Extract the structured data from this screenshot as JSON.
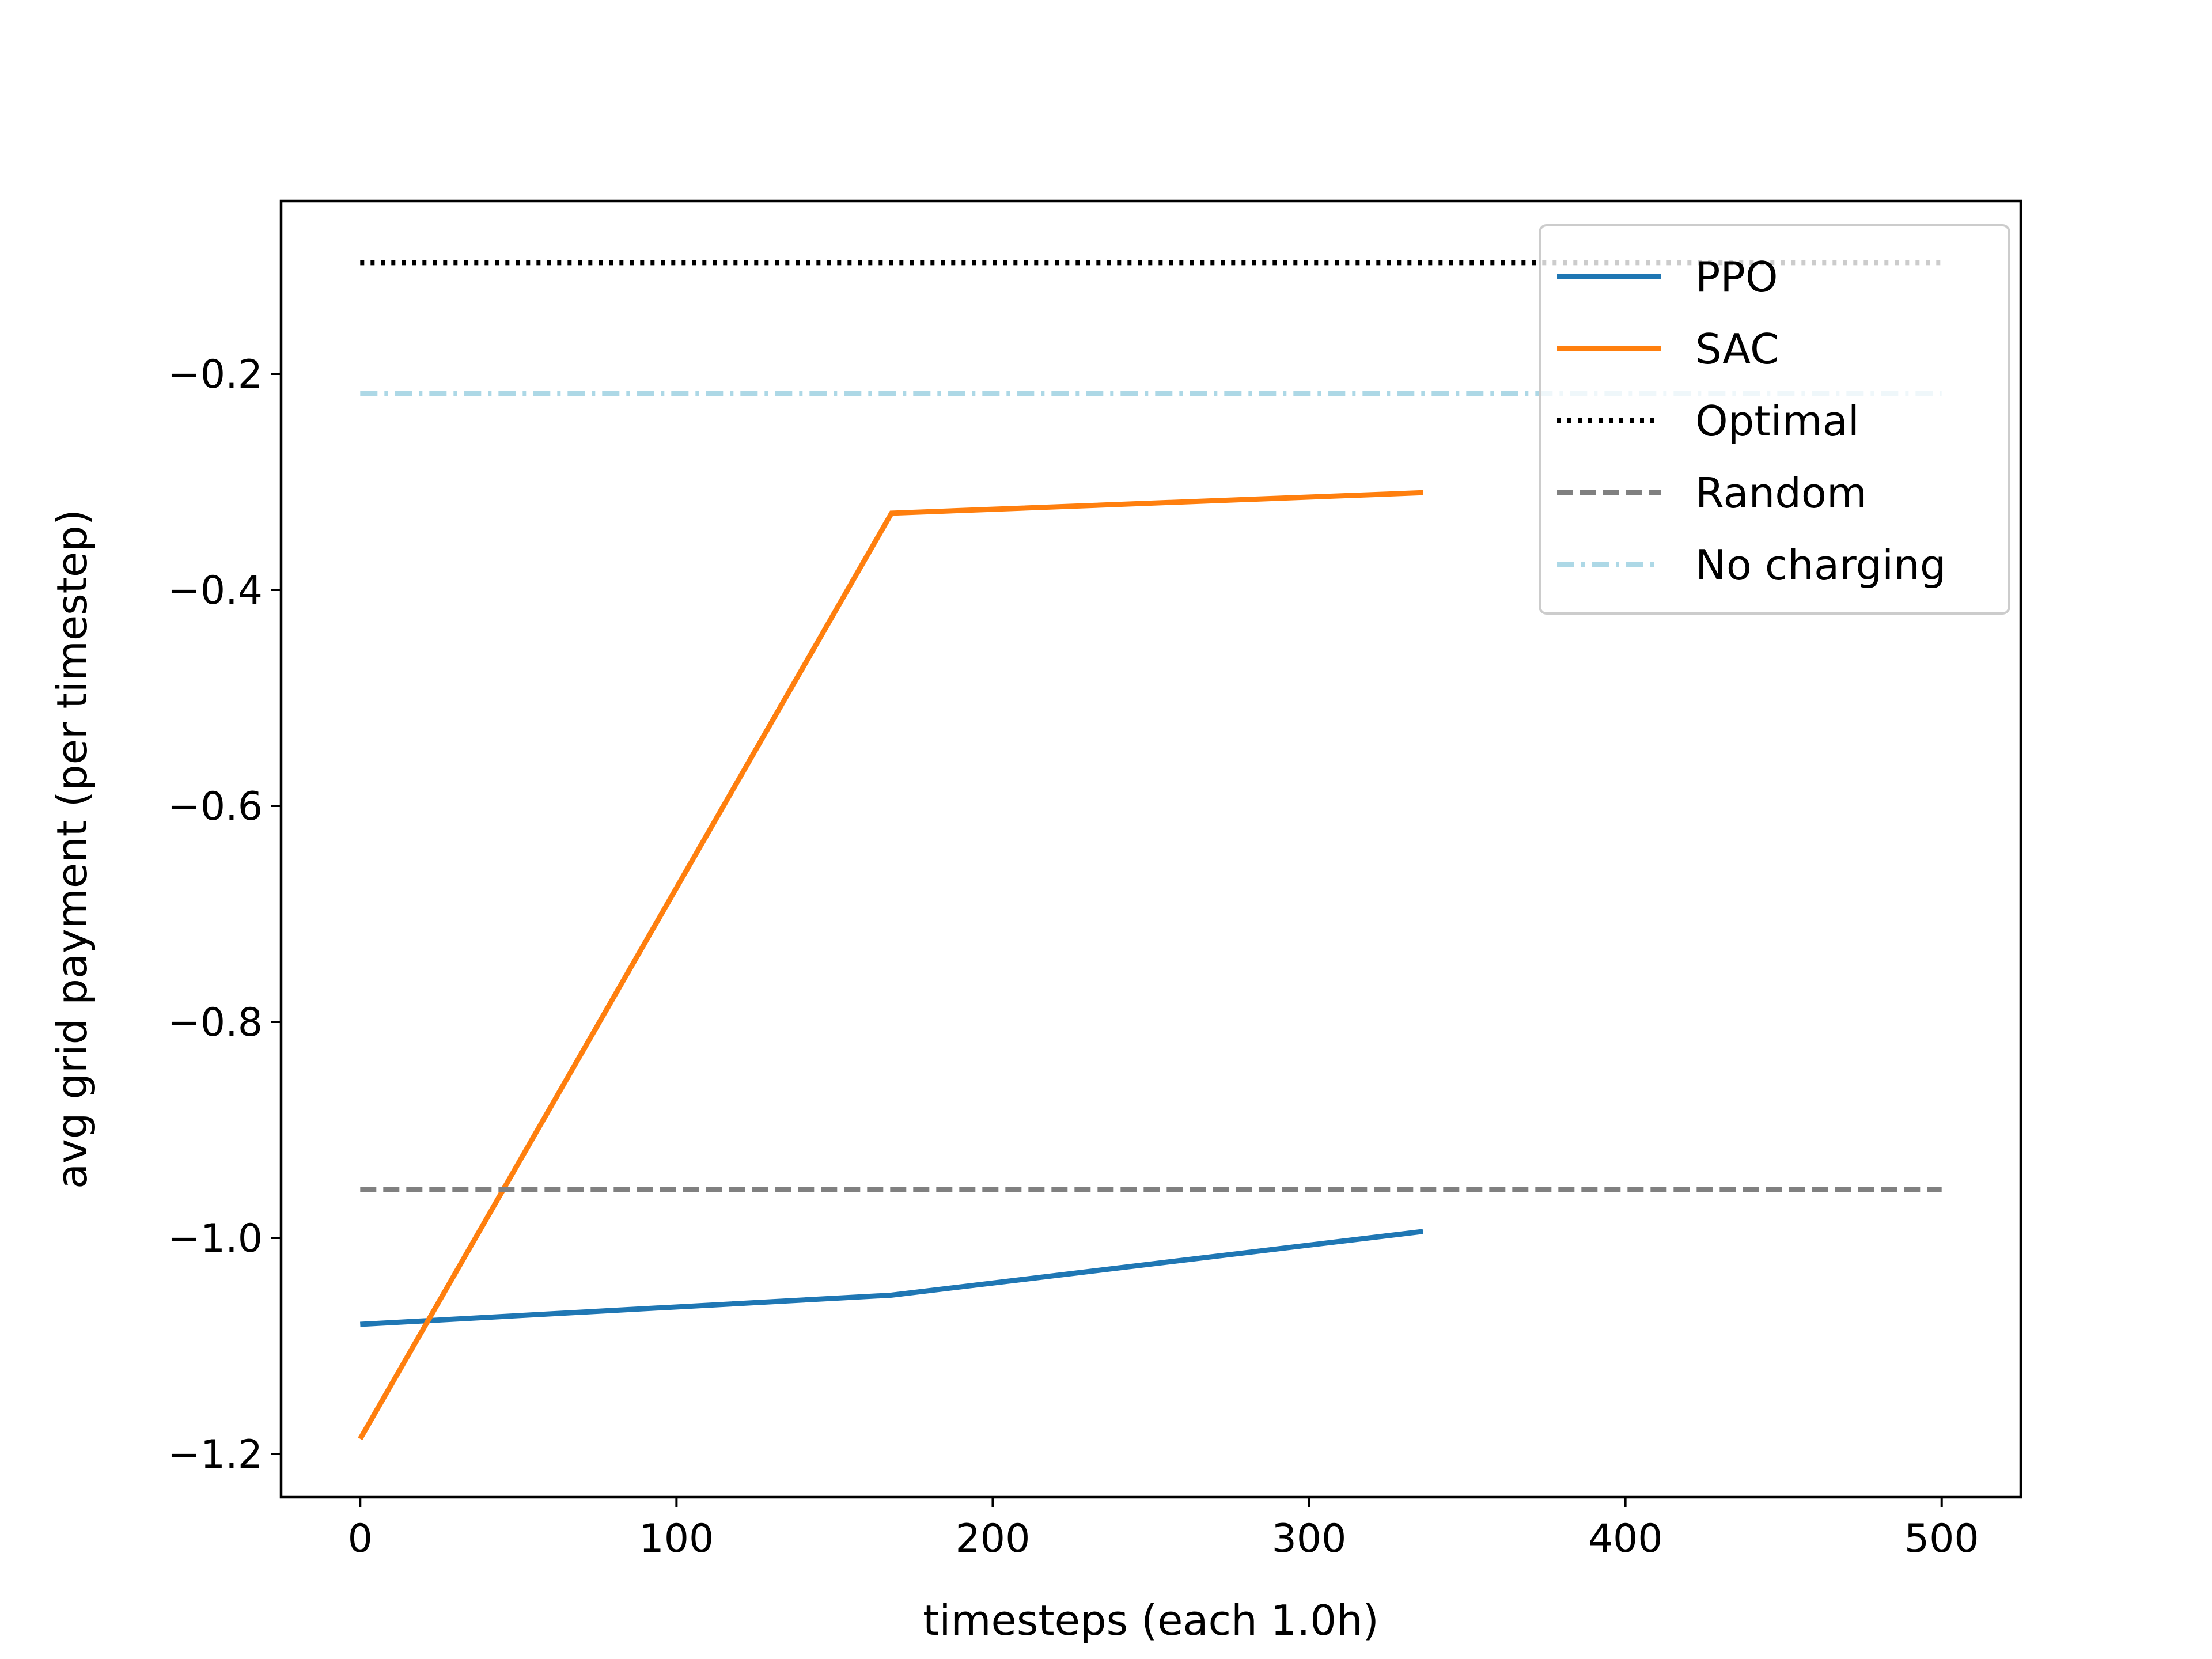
{
  "chart_data": {
    "type": "line",
    "title": "",
    "xlabel": "timesteps (each 1.0h)",
    "ylabel": "avg grid payment (per timestep)",
    "xlim": [
      -25,
      525
    ],
    "ylim": [
      -1.24,
      -0.04
    ],
    "xticks": [
      0,
      100,
      200,
      300,
      400,
      500
    ],
    "xtick_labels": [
      "0",
      "100",
      "200",
      "300",
      "400",
      "500"
    ],
    "yticks": [
      -0.2,
      -0.4,
      -0.6,
      -0.8,
      -1.0,
      -1.2
    ],
    "ytick_labels": [
      "−0.2",
      "−0.4",
      "−0.6",
      "−0.8",
      "−1.0",
      "−1.2"
    ],
    "grid": false,
    "legend_position": "top-right",
    "series": [
      {
        "name": "PPO",
        "color": "#1f77b4",
        "style": "solid",
        "x": [
          0,
          168,
          336
        ],
        "y": [
          -1.08,
          -1.053,
          -0.994
        ]
      },
      {
        "name": "SAC",
        "color": "#ff7f0e",
        "style": "solid",
        "x": [
          0,
          168,
          336
        ],
        "y": [
          -1.186,
          -0.329,
          -0.31
        ]
      },
      {
        "name": "Optimal",
        "color": "#000000",
        "style": "dotted",
        "x": [
          0,
          500
        ],
        "y": [
          -0.097,
          -0.097
        ]
      },
      {
        "name": "Random",
        "color": "#808080",
        "style": "dashed",
        "x": [
          0,
          500
        ],
        "y": [
          -0.955,
          -0.955
        ]
      },
      {
        "name": "No charging",
        "color": "#add8e6",
        "style": "dashdot",
        "x": [
          0,
          500
        ],
        "y": [
          -0.218,
          -0.218
        ]
      }
    ]
  }
}
